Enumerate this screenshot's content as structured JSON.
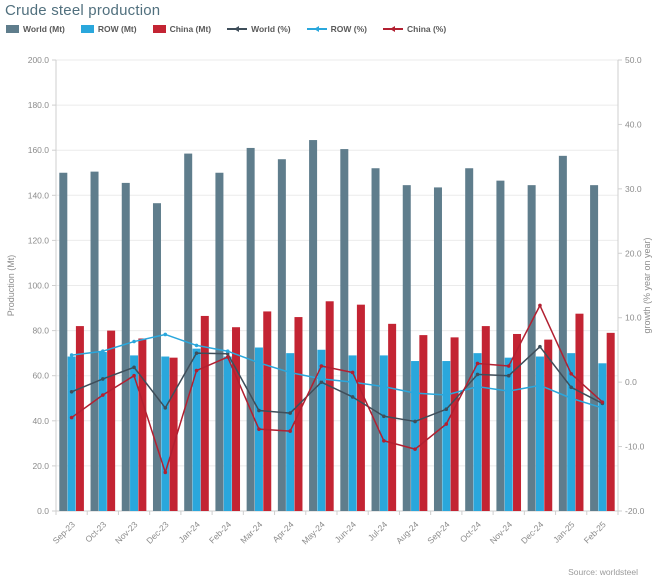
{
  "header": {
    "title": "Crude steel production"
  },
  "footer": {
    "source": "Source: worldsteel"
  },
  "colors": {
    "title": "#51707e",
    "world_bar": "#5f7d8c",
    "row_bar": "#2aa7dc",
    "china_bar": "#c32433",
    "world_line": "#3f4e5a",
    "row_line": "#2aa7dc",
    "china_line": "#b22031",
    "grid": "#ebebeb",
    "axis": "#cfcfcf",
    "tick_text": "#8c8c8c"
  },
  "legend": [
    {
      "label": "World (Mt)",
      "type": "bar",
      "color": "#5f7d8c"
    },
    {
      "label": "ROW (Mt)",
      "type": "bar",
      "color": "#2aa7dc"
    },
    {
      "label": "China (Mt)",
      "type": "bar",
      "color": "#c32433"
    },
    {
      "label": "World (%)",
      "type": "line",
      "color": "#3f4e5a"
    },
    {
      "label": "ROW (%)",
      "type": "line",
      "color": "#2aa7dc"
    },
    {
      "label": "China (%)",
      "type": "line",
      "color": "#b22031"
    }
  ],
  "chart_data": {
    "type": "bar",
    "subtype": "combo-bar-line-dual-axis",
    "title": "Crude steel production",
    "categories": [
      "Sep-23",
      "Oct-23",
      "Nov-23",
      "Dec-23",
      "Jan-24",
      "Feb-24",
      "Mar-24",
      "Apr-24",
      "May-24",
      "Jun-24",
      "Jul-24",
      "Aug-24",
      "Sep-24",
      "Oct-24",
      "Nov-24",
      "Dec-24",
      "Jan-25",
      "Feb-25"
    ],
    "series": [
      {
        "name": "World (Mt)",
        "kind": "bar",
        "axis": "left",
        "color": "#5f7d8c",
        "values": [
          150,
          150.5,
          145.5,
          136.5,
          158.5,
          150,
          161,
          156,
          164.5,
          160.5,
          152,
          144.5,
          143.5,
          152,
          146.5,
          144.5,
          157.5,
          144.5
        ]
      },
      {
        "name": "ROW (Mt)",
        "kind": "bar",
        "axis": "left",
        "color": "#2aa7dc",
        "values": [
          68.5,
          70.5,
          69,
          68.5,
          72,
          68.5,
          72.5,
          70,
          71.5,
          69,
          69,
          66.5,
          66.5,
          70,
          68,
          68.5,
          70,
          65.5
        ]
      },
      {
        "name": "China (Mt)",
        "kind": "bar",
        "axis": "left",
        "color": "#c32433",
        "values": [
          82,
          80,
          76.5,
          68,
          86.5,
          81.5,
          88.5,
          86,
          93,
          91.5,
          83,
          78,
          77,
          82,
          78.5,
          76,
          87.5,
          79
        ]
      },
      {
        "name": "World (%)",
        "kind": "line",
        "axis": "right",
        "color": "#3f4e5a",
        "values": [
          -1.5,
          0.5,
          2.3,
          -4,
          4.5,
          4.4,
          -4.4,
          -4.8,
          0,
          -2.3,
          -5.3,
          -6.1,
          -4.2,
          1.2,
          1,
          5.5,
          -0.8,
          -3.3
        ]
      },
      {
        "name": "ROW (%)",
        "kind": "line",
        "axis": "right",
        "color": "#2aa7dc",
        "values": [
          4.2,
          4.8,
          6.3,
          7.4,
          5.7,
          4.8,
          3,
          1.5,
          0.5,
          0,
          -0.7,
          -1.7,
          -2,
          -0.7,
          -1.4,
          -0.5,
          -2.5,
          -4
        ]
      },
      {
        "name": "China (%)",
        "kind": "line",
        "axis": "right",
        "color": "#b22031",
        "values": [
          -5.5,
          -2,
          1,
          -14,
          1.8,
          3.9,
          -7.3,
          -7.6,
          2.5,
          1.5,
          -9.1,
          -10.4,
          -6.5,
          2.9,
          2.5,
          11.9,
          1.3,
          -3.1
        ]
      }
    ],
    "left_axis": {
      "title": "Production (Mt)",
      "min": 0,
      "max": 200,
      "step": 20
    },
    "right_axis": {
      "title": "growth (% year on year)",
      "min": -20,
      "max": 50,
      "step": 10
    },
    "grid": true,
    "legend_position": "top"
  }
}
